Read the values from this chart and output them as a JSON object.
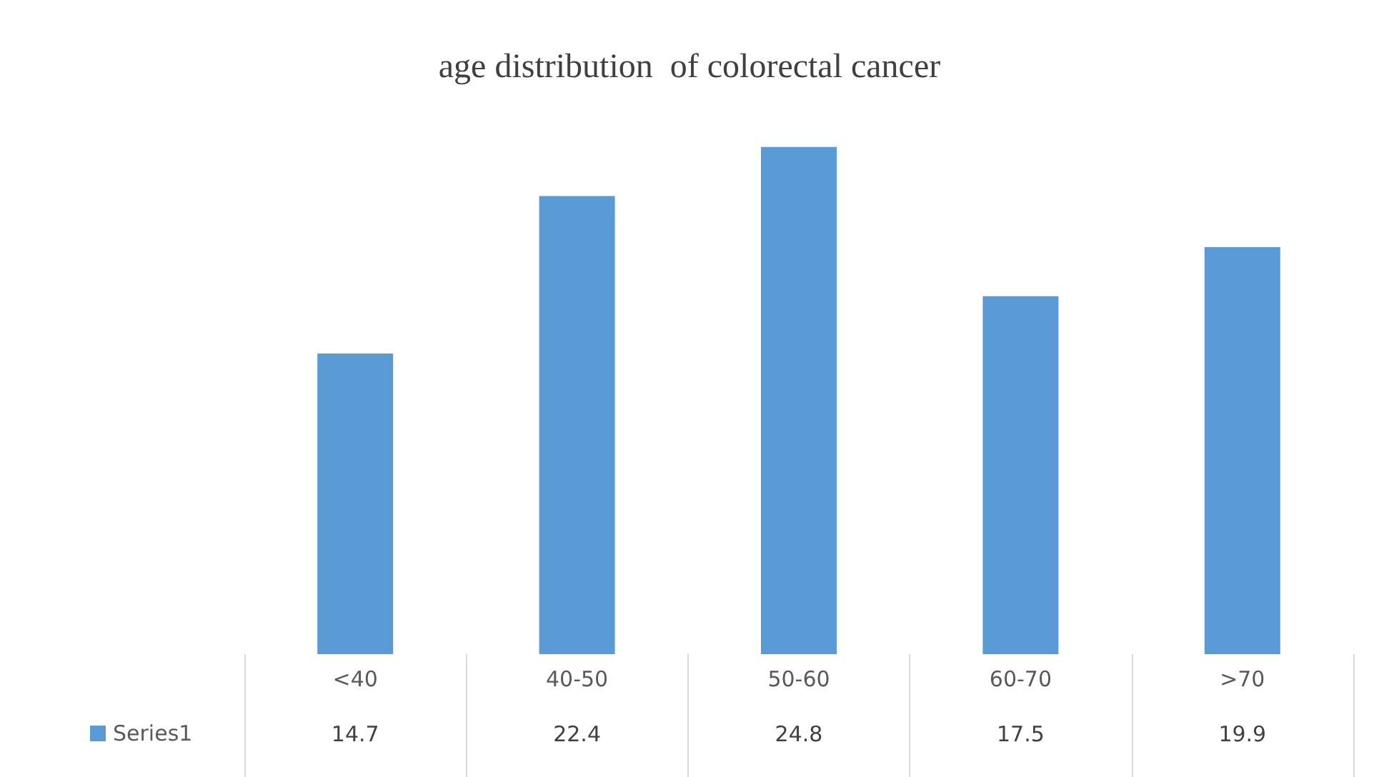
{
  "chart_data": {
    "type": "bar",
    "title": "age distribution  of colorectal cancer",
    "categories": [
      "<40",
      "40-50",
      "50-60",
      "60-70",
      ">70"
    ],
    "series": [
      {
        "name": "Series1",
        "color": "#5b9bd5",
        "values": [
          14.7,
          22.4,
          24.8,
          17.5,
          19.9
        ]
      }
    ],
    "data_labels": true,
    "legend": "bottom left",
    "grid": false
  }
}
